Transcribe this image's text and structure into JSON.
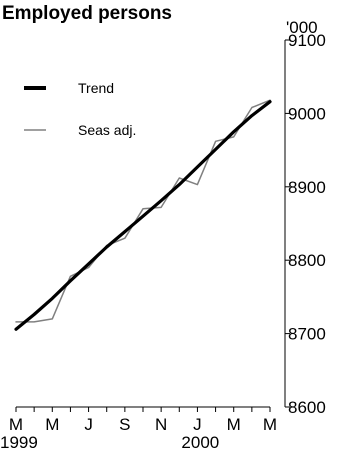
{
  "chart_data": {
    "type": "line",
    "title": "Employed persons",
    "ylabel_unit": "'000",
    "ylim": [
      8600,
      9100
    ],
    "yticks": [
      8600,
      8700,
      8800,
      8900,
      9000,
      9100
    ],
    "xlabels": [
      {
        "label": "M",
        "year": "1999"
      },
      {
        "label": "M",
        "year": ""
      },
      {
        "label": "J",
        "year": ""
      },
      {
        "label": "S",
        "year": ""
      },
      {
        "label": "N",
        "year": ""
      },
      {
        "label": "J",
        "year": "2000"
      },
      {
        "label": "M",
        "year": ""
      },
      {
        "label": "M",
        "year": ""
      }
    ],
    "x": [
      "Mar-1999",
      "Apr-1999",
      "May-1999",
      "Jun-1999",
      "Jul-1999",
      "Aug-1999",
      "Sep-1999",
      "Oct-1999",
      "Nov-1999",
      "Dec-1999",
      "Jan-2000",
      "Feb-2000",
      "Mar-2000",
      "Apr-2000",
      "May-2000"
    ],
    "series": [
      {
        "name": "Trend",
        "color": "#000000",
        "values": [
          8706,
          8726,
          8748,
          8772,
          8795,
          8818,
          8839,
          8860,
          8881,
          8903,
          8927,
          8951,
          8975,
          8997,
          9016
        ]
      },
      {
        "name": "Seas adj.",
        "color": "#808080",
        "values": [
          8716,
          8716,
          8720,
          8778,
          8790,
          8820,
          8830,
          8870,
          8872,
          8912,
          8903,
          8962,
          8968,
          9008,
          9018
        ]
      }
    ],
    "legend": "top-left",
    "grid": false
  }
}
